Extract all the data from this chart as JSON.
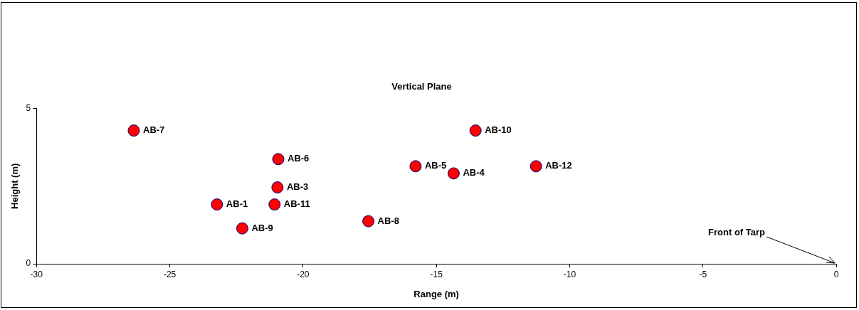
{
  "chart_data": {
    "type": "scatter",
    "title": "Vertical Plane",
    "xlabel": "Range (m)",
    "ylabel": "Height (m)",
    "xlim": [
      -30,
      0
    ],
    "xticks": [
      -30,
      -25,
      -20,
      -15,
      -10,
      -5,
      0
    ],
    "ylim": [
      0,
      5
    ],
    "yticks": [
      0,
      5
    ],
    "x": [
      -26.35,
      -23.23,
      -22.28,
      -20.93,
      -20.96,
      -21.07,
      -17.55,
      -15.78,
      -14.35,
      -13.53,
      -11.26
    ],
    "series": [
      {
        "color": "#ff0000",
        "values": [
          4.29,
          1.91,
          1.14,
          3.37,
          2.46,
          1.91,
          1.37,
          3.14,
          2.91,
          4.29,
          3.14
        ]
      }
    ],
    "marker": "circle",
    "grid": false,
    "legend": false,
    "annotations": [
      {
        "text": "AB-7",
        "x": -26.35,
        "y": 4.29
      },
      {
        "text": "AB-1",
        "x": -23.23,
        "y": 1.91
      },
      {
        "text": "AB-9",
        "x": -22.28,
        "y": 1.14
      },
      {
        "text": "AB-6",
        "x": -20.93,
        "y": 3.37
      },
      {
        "text": "AB-3",
        "x": -20.96,
        "y": 2.46
      },
      {
        "text": "AB-11",
        "x": -21.07,
        "y": 1.91
      },
      {
        "text": "AB-8",
        "x": -17.55,
        "y": 1.37
      },
      {
        "text": "AB-5",
        "x": -15.78,
        "y": 3.14
      },
      {
        "text": "AB-4",
        "x": -14.35,
        "y": 2.91
      },
      {
        "text": "AB-10",
        "x": -13.53,
        "y": 4.29
      },
      {
        "text": "AB-12",
        "x": -11.26,
        "y": 3.14
      },
      "Front of Tarp"
    ]
  }
}
